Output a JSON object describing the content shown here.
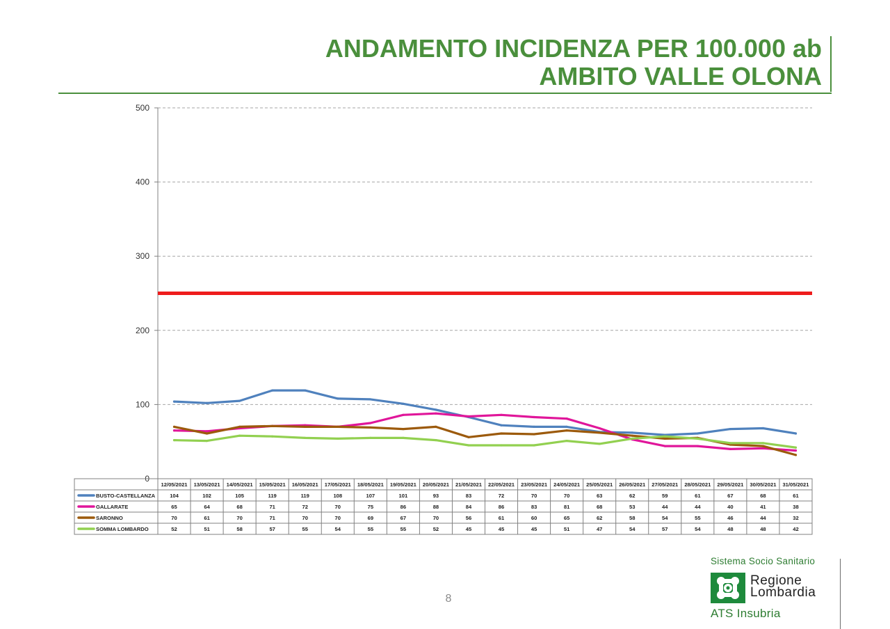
{
  "header": {
    "title_line1": "ANDAMENTO INCIDENZA PER 100.000 ab",
    "title_line2": "AMBITO VALLE OLONA"
  },
  "page_number": "8",
  "logo": {
    "top_text": "Sistema Socio Sanitario",
    "name_line1": "Regione",
    "name_line2": "Lombardia",
    "sub_text": "ATS Insubria"
  },
  "chart_data": {
    "type": "line",
    "title": "",
    "xlabel": "",
    "ylabel": "",
    "ylim": [
      0,
      500
    ],
    "yticks": [
      0,
      100,
      200,
      300,
      400,
      500
    ],
    "grid": true,
    "data_table": true,
    "threshold": {
      "value": 250,
      "color": "#ee1c1c"
    },
    "categories": [
      "12/05/2021",
      "13/05/2021",
      "14/05/2021",
      "15/05/2021",
      "16/05/2021",
      "17/05/2021",
      "18/05/2021",
      "19/05/2021",
      "20/05/2021",
      "21/05/2021",
      "22/05/2021",
      "23/05/2021",
      "24/05/2021",
      "25/05/2021",
      "26/05/2021",
      "27/05/2021",
      "28/05/2021",
      "29/05/2021",
      "30/05/2021",
      "31/05/2021"
    ],
    "series": [
      {
        "name": "BUSTO-CASTELLANZA",
        "color": "#4f81bd",
        "values": [
          104,
          102,
          105,
          119,
          119,
          108,
          107,
          101,
          93,
          83,
          72,
          70,
          70,
          63,
          62,
          59,
          61,
          67,
          68,
          61
        ]
      },
      {
        "name": "GALLARATE",
        "color": "#e0169a",
        "values": [
          65,
          64,
          68,
          71,
          72,
          70,
          75,
          86,
          88,
          84,
          86,
          83,
          81,
          68,
          53,
          44,
          44,
          40,
          41,
          38
        ]
      },
      {
        "name": "SARONNO",
        "color": "#9c5a0c",
        "values": [
          70,
          61,
          70,
          71,
          70,
          70,
          69,
          67,
          70,
          56,
          61,
          60,
          65,
          62,
          58,
          54,
          55,
          46,
          44,
          32
        ]
      },
      {
        "name": "SOMMA LOMBARDO",
        "color": "#92d050",
        "values": [
          52,
          51,
          58,
          57,
          55,
          54,
          55,
          55,
          52,
          45,
          45,
          45,
          51,
          47,
          54,
          57,
          54,
          48,
          48,
          42
        ]
      }
    ]
  }
}
